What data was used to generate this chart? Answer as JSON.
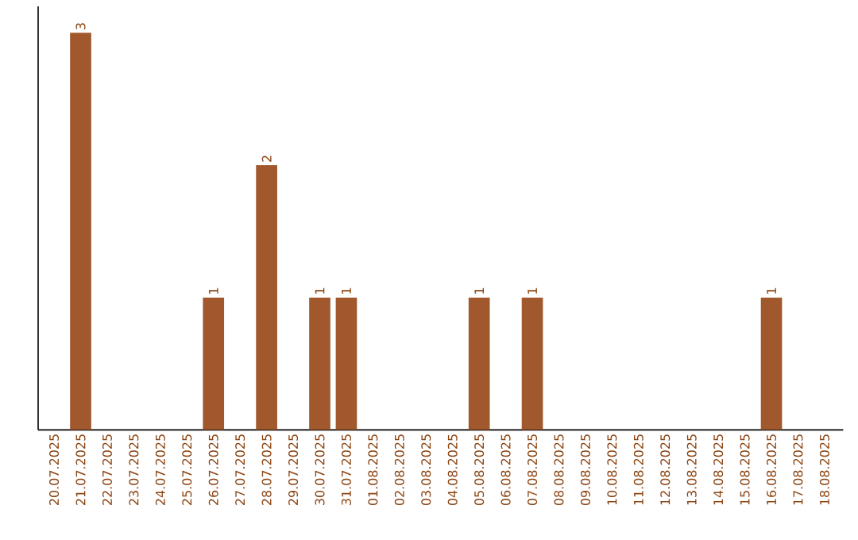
{
  "chart_data": {
    "type": "bar",
    "color": "#a0582c",
    "categories": [
      "20.07.2025",
      "21.07.2025",
      "22.07.2025",
      "23.07.2025",
      "24.07.2025",
      "25.07.2025",
      "26.07.2025",
      "27.07.2025",
      "28.07.2025",
      "29.07.2025",
      "30.07.2025",
      "31.07.2025",
      "01.08.2025",
      "02.08.2025",
      "03.08.2025",
      "04.08.2025",
      "05.08.2025",
      "06.08.2025",
      "07.08.2025",
      "08.08.2025",
      "09.08.2025",
      "10.08.2025",
      "11.08.2025",
      "12.08.2025",
      "13.08.2025",
      "14.08.2025",
      "15.08.2025",
      "16.08.2025",
      "17.08.2025",
      "18.08.2025"
    ],
    "values": [
      0,
      3,
      0,
      0,
      0,
      0,
      1,
      0,
      2,
      0,
      1,
      1,
      0,
      0,
      0,
      0,
      1,
      0,
      1,
      0,
      0,
      0,
      0,
      0,
      0,
      0,
      0,
      1,
      0,
      0
    ],
    "value_labels": [
      null,
      "3",
      null,
      null,
      null,
      null,
      "1",
      null,
      "2",
      null,
      "1",
      "1",
      null,
      null,
      null,
      null,
      "1",
      null,
      "1",
      null,
      null,
      null,
      null,
      null,
      null,
      null,
      null,
      "1",
      null,
      null
    ],
    "ylim": [
      0,
      3.2
    ]
  }
}
